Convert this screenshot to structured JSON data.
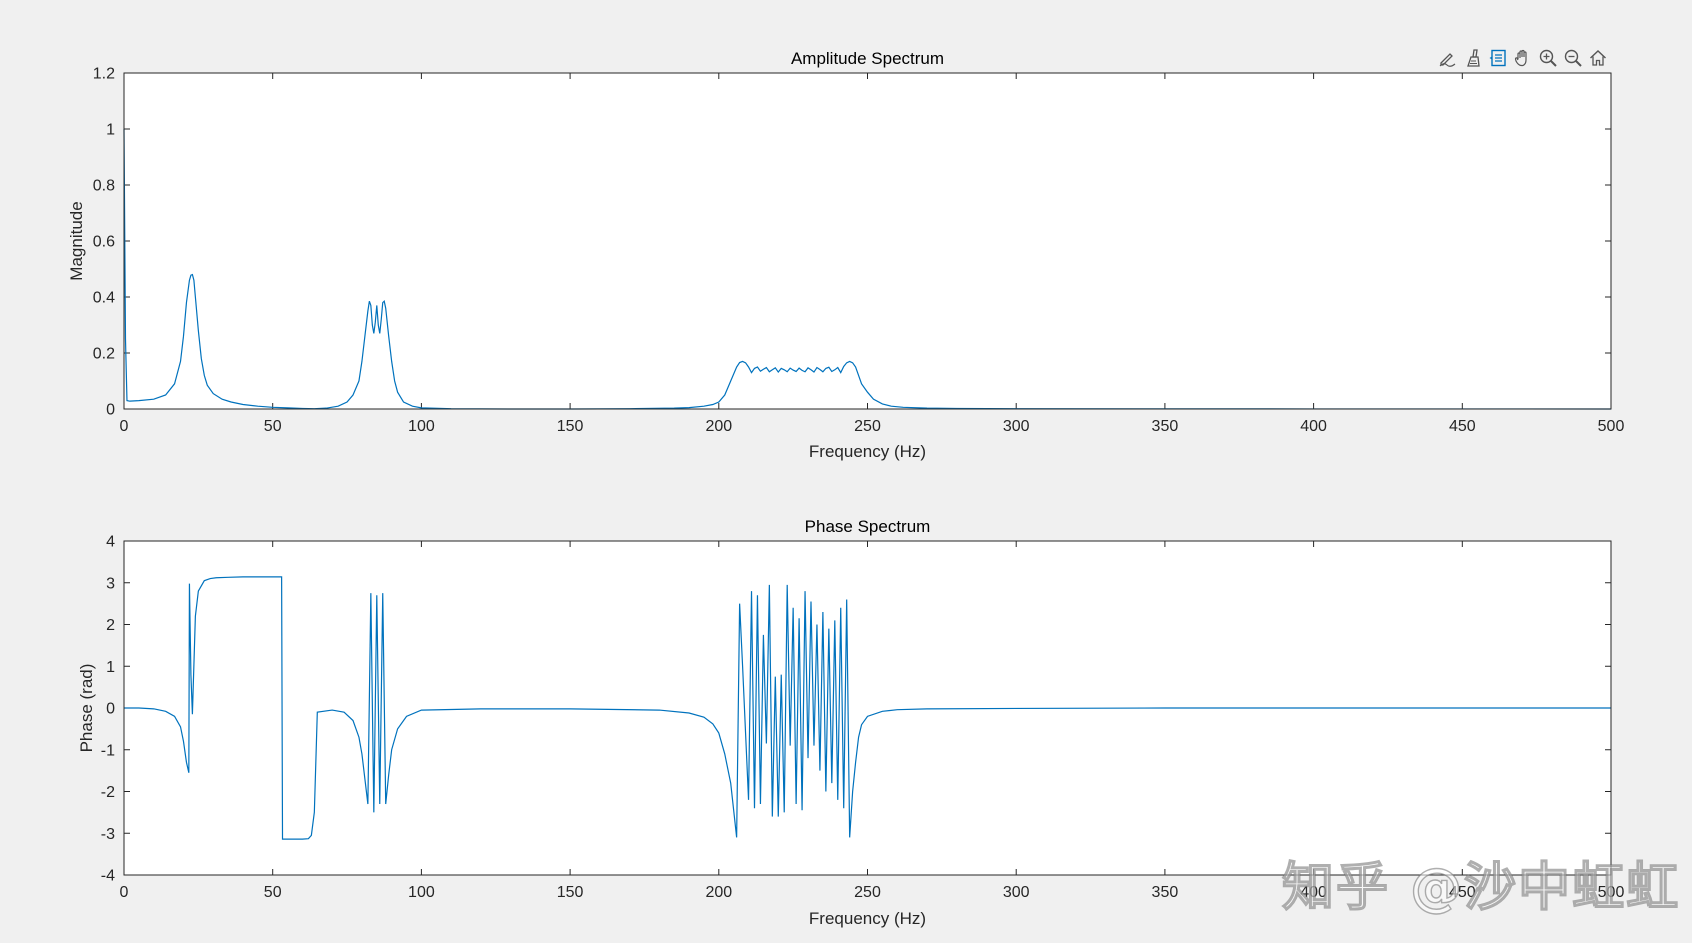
{
  "toolbar": {
    "buttons": [
      {
        "name": "edit-plot-icon"
      },
      {
        "name": "brush-icon"
      },
      {
        "name": "data-tips-icon"
      },
      {
        "name": "pan-hand-icon"
      },
      {
        "name": "zoom-in-icon"
      },
      {
        "name": "zoom-out-icon"
      },
      {
        "name": "home-icon"
      }
    ],
    "accent_color": "#0072bd"
  },
  "watermark": {
    "text": "知乎 @沙中虹虹"
  },
  "chart_data": [
    {
      "type": "line",
      "title": "Amplitude Spectrum",
      "xlabel": "Frequency (Hz)",
      "ylabel": "Magnitude",
      "xlim": [
        0,
        500
      ],
      "ylim": [
        0,
        1.2
      ],
      "xticks": [
        0,
        50,
        100,
        150,
        200,
        250,
        300,
        350,
        400,
        450,
        500
      ],
      "yticks": [
        0,
        0.2,
        0.4,
        0.6,
        0.8,
        1,
        1.2
      ],
      "grid": false,
      "line_color": "#0072bd",
      "series": [
        {
          "x": [
            0,
            0.5,
            1,
            2,
            5,
            10,
            14,
            17,
            19,
            20,
            21,
            22,
            22.5,
            23,
            23.5,
            24,
            25,
            26,
            27,
            28,
            30,
            33,
            36,
            40,
            45,
            50,
            55,
            60,
            64,
            68,
            72,
            75,
            77,
            79,
            80,
            81,
            82,
            82.5,
            83,
            83.5,
            84,
            84.5,
            85,
            85.5,
            86,
            86.5,
            87,
            87.5,
            88,
            89,
            90,
            91,
            92,
            94,
            97,
            100,
            110,
            130,
            150,
            170,
            185,
            190,
            195,
            198,
            200,
            202,
            204,
            206,
            207,
            208,
            209,
            210,
            211,
            212,
            213,
            214,
            215,
            216,
            217,
            218,
            219,
            220,
            221,
            222,
            223,
            224,
            225,
            226,
            227,
            228,
            229,
            230,
            231,
            232,
            233,
            234,
            235,
            236,
            237,
            238,
            239,
            240,
            241,
            242,
            243,
            244,
            245,
            246,
            247,
            248,
            250,
            252,
            255,
            258,
            262,
            270,
            280,
            300,
            350,
            400,
            450,
            500
          ],
          "y": [
            1.0,
            0.25,
            0.03,
            0.028,
            0.03,
            0.035,
            0.05,
            0.09,
            0.17,
            0.26,
            0.38,
            0.46,
            0.478,
            0.48,
            0.46,
            0.4,
            0.28,
            0.18,
            0.12,
            0.085,
            0.055,
            0.035,
            0.025,
            0.016,
            0.01,
            0.006,
            0.004,
            0.002,
            0.001,
            0.003,
            0.01,
            0.025,
            0.05,
            0.1,
            0.17,
            0.26,
            0.35,
            0.385,
            0.37,
            0.3,
            0.27,
            0.31,
            0.37,
            0.3,
            0.27,
            0.32,
            0.38,
            0.385,
            0.36,
            0.26,
            0.17,
            0.1,
            0.06,
            0.025,
            0.01,
            0.004,
            0.001,
            0.0,
            0.0,
            0.001,
            0.003,
            0.005,
            0.01,
            0.016,
            0.025,
            0.05,
            0.1,
            0.15,
            0.166,
            0.17,
            0.165,
            0.15,
            0.13,
            0.145,
            0.15,
            0.135,
            0.142,
            0.148,
            0.133,
            0.14,
            0.147,
            0.132,
            0.145,
            0.14,
            0.133,
            0.146,
            0.139,
            0.134,
            0.146,
            0.138,
            0.133,
            0.147,
            0.14,
            0.132,
            0.148,
            0.141,
            0.133,
            0.145,
            0.149,
            0.134,
            0.14,
            0.148,
            0.13,
            0.152,
            0.165,
            0.17,
            0.165,
            0.15,
            0.12,
            0.09,
            0.06,
            0.035,
            0.018,
            0.01,
            0.006,
            0.003,
            0.002,
            0.001,
            0.0005,
            0.0003,
            0.0002,
            0.0001
          ]
        }
      ]
    },
    {
      "type": "line",
      "title": "Phase Spectrum",
      "xlabel": "Frequency (Hz)",
      "ylabel": "Phase (rad)",
      "xlim": [
        0,
        500
      ],
      "ylim": [
        -4,
        4
      ],
      "xticks": [
        0,
        50,
        100,
        150,
        200,
        250,
        300,
        350,
        400,
        450,
        500
      ],
      "yticks": [
        -4,
        -3,
        -2,
        -1,
        0,
        1,
        2,
        3,
        4
      ],
      "grid": false,
      "line_color": "#0072bd",
      "series": [
        {
          "x": [
            0,
            5,
            10,
            14,
            17,
            19,
            20,
            21,
            21.8,
            22,
            22.5,
            23,
            24,
            25,
            27,
            29,
            31,
            35,
            40,
            50,
            53,
            53.3,
            54,
            60,
            62,
            63,
            64,
            65,
            70,
            74,
            77,
            79,
            80,
            81,
            82,
            83,
            84,
            85,
            86,
            87,
            88,
            89,
            90,
            92,
            95,
            100,
            120,
            150,
            180,
            190,
            195,
            198,
            200,
            202,
            204,
            206,
            207,
            208,
            210,
            211,
            212,
            213,
            214,
            215,
            216,
            217,
            218,
            219,
            220,
            221,
            222,
            223,
            224,
            225,
            226,
            227,
            228,
            229,
            230,
            231,
            232,
            233,
            234,
            235,
            236,
            237,
            238,
            239,
            240,
            241,
            242,
            243,
            244,
            245,
            246,
            247,
            248,
            250,
            255,
            260,
            270,
            300,
            350,
            400,
            450,
            500
          ],
          "y": [
            0,
            0,
            -0.02,
            -0.08,
            -0.2,
            -0.45,
            -0.8,
            -1.3,
            -1.55,
            2.98,
            0.8,
            -0.15,
            2.2,
            2.8,
            3.05,
            3.1,
            3.12,
            3.13,
            3.14,
            3.14,
            3.14,
            -3.14,
            -3.14,
            -3.14,
            -3.13,
            -3.05,
            -2.5,
            -0.1,
            -0.05,
            -0.1,
            -0.3,
            -0.7,
            -1.1,
            -1.7,
            -2.3,
            2.75,
            -2.5,
            2.7,
            -2.3,
            2.75,
            -2.3,
            -1.6,
            -1.0,
            -0.5,
            -0.2,
            -0.05,
            -0.02,
            -0.02,
            -0.05,
            -0.12,
            -0.22,
            -0.38,
            -0.6,
            -1.1,
            -1.8,
            -3.1,
            2.5,
            1.0,
            -2.2,
            2.8,
            -2.4,
            2.7,
            -2.3,
            1.75,
            -0.85,
            2.95,
            -2.6,
            0.75,
            -2.6,
            0.8,
            -2.5,
            2.95,
            -0.9,
            2.4,
            -2.3,
            2.15,
            -2.45,
            2.8,
            -1.2,
            2.55,
            -0.9,
            2.0,
            -1.5,
            2.3,
            -2.0,
            1.9,
            -1.8,
            2.1,
            -2.2,
            2.4,
            -2.4,
            2.6,
            -3.1,
            -2.0,
            -1.3,
            -0.7,
            -0.4,
            -0.2,
            -0.08,
            -0.04,
            -0.02,
            -0.01,
            0,
            0,
            0,
            0
          ]
        }
      ]
    }
  ]
}
